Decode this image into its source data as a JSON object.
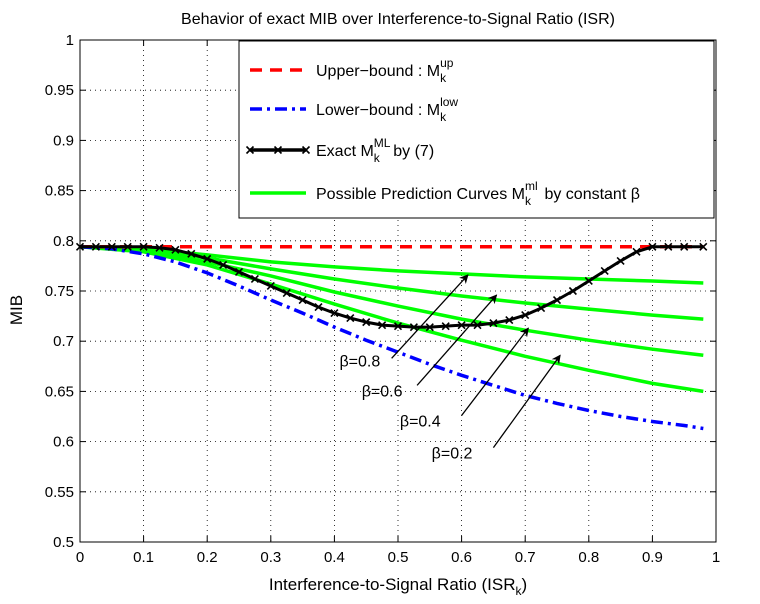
{
  "chart_data": {
    "type": "line",
    "title": "Behavior of exact MIB over Interference-to-Signal Ratio (ISR)",
    "xlabel": {
      "main": "Interference-to-Signal Ratio (ISR",
      "sub": "k",
      "close": ")"
    },
    "ylabel": "MIB",
    "xlim": [
      0,
      1
    ],
    "ylim": [
      0.5,
      1
    ],
    "xticks": [
      "0",
      "0.1",
      "0.2",
      "0.3",
      "0.4",
      "0.5",
      "0.6",
      "0.7",
      "0.8",
      "0.9",
      "1"
    ],
    "yticks": [
      "0.5",
      "0.55",
      "0.6",
      "0.65",
      "0.7",
      "0.75",
      "0.8",
      "0.85",
      "0.9",
      "0.95",
      "1"
    ],
    "grid": true,
    "legend_position": "top-right",
    "colors": {
      "upper": "#ff0000",
      "lower": "#0000ff",
      "exact": "#000000",
      "prediction": "#00ff00"
    },
    "legend": [
      {
        "key": "upper",
        "text": "Upper−bound : M",
        "sub": "k",
        "sup": "up",
        "suffix": ""
      },
      {
        "key": "lower",
        "text": "Lower−bound : M",
        "sub": "k",
        "sup": "low",
        "suffix": ""
      },
      {
        "key": "exact",
        "text": "Exact M",
        "sub": "k",
        "sup": "ML",
        "suffix": " by (7)"
      },
      {
        "key": "prediction",
        "text": "Possible Prediction Curves M",
        "sub": "k",
        "sup": "ml",
        "suffix": " by constant β"
      }
    ],
    "series": {
      "upper": {
        "x": [
          0,
          0.98
        ],
        "y": [
          0.794,
          0.794
        ]
      },
      "lower": {
        "x": [
          0,
          0.05,
          0.1,
          0.15,
          0.2,
          0.25,
          0.3,
          0.35,
          0.4,
          0.45,
          0.5,
          0.55,
          0.6,
          0.65,
          0.7,
          0.75,
          0.8,
          0.85,
          0.9,
          0.95,
          0.98
        ],
        "y": [
          0.794,
          0.792,
          0.787,
          0.779,
          0.768,
          0.755,
          0.741,
          0.728,
          0.714,
          0.701,
          0.689,
          0.677,
          0.666,
          0.656,
          0.646,
          0.638,
          0.631,
          0.625,
          0.62,
          0.616,
          0.613
        ]
      },
      "exact": {
        "x": [
          0,
          0.025,
          0.05,
          0.075,
          0.1,
          0.125,
          0.15,
          0.175,
          0.2,
          0.225,
          0.25,
          0.275,
          0.3,
          0.325,
          0.35,
          0.375,
          0.4,
          0.425,
          0.45,
          0.475,
          0.5,
          0.525,
          0.55,
          0.575,
          0.6,
          0.625,
          0.65,
          0.675,
          0.7,
          0.725,
          0.75,
          0.775,
          0.8,
          0.825,
          0.85,
          0.875,
          0.9,
          0.925,
          0.95,
          0.98
        ],
        "y": [
          0.794,
          0.794,
          0.794,
          0.794,
          0.794,
          0.793,
          0.791,
          0.787,
          0.782,
          0.776,
          0.769,
          0.762,
          0.755,
          0.748,
          0.741,
          0.734,
          0.728,
          0.723,
          0.719,
          0.716,
          0.715,
          0.714,
          0.714,
          0.715,
          0.716,
          0.716,
          0.718,
          0.721,
          0.726,
          0.733,
          0.741,
          0.75,
          0.76,
          0.77,
          0.78,
          0.789,
          0.794,
          0.794,
          0.794,
          0.794
        ]
      },
      "prediction": [
        {
          "label": "β=0.8",
          "x": [
            0,
            0.1,
            0.2,
            0.3,
            0.4,
            0.5,
            0.6,
            0.7,
            0.8,
            0.9,
            0.98
          ],
          "y": [
            0.794,
            0.792,
            0.786,
            0.779,
            0.774,
            0.77,
            0.767,
            0.764,
            0.762,
            0.76,
            0.758
          ]
        },
        {
          "label": "β=0.6",
          "x": [
            0,
            0.1,
            0.2,
            0.3,
            0.4,
            0.5,
            0.6,
            0.7,
            0.8,
            0.9,
            0.98
          ],
          "y": [
            0.794,
            0.791,
            0.783,
            0.772,
            0.762,
            0.753,
            0.745,
            0.738,
            0.732,
            0.726,
            0.722
          ]
        },
        {
          "label": "β=0.4",
          "x": [
            0,
            0.1,
            0.2,
            0.3,
            0.4,
            0.5,
            0.6,
            0.7,
            0.8,
            0.9,
            0.98
          ],
          "y": [
            0.794,
            0.79,
            0.779,
            0.765,
            0.749,
            0.735,
            0.722,
            0.711,
            0.701,
            0.692,
            0.686
          ]
        },
        {
          "label": "β=0.2",
          "x": [
            0,
            0.1,
            0.2,
            0.3,
            0.4,
            0.5,
            0.6,
            0.7,
            0.8,
            0.9,
            0.98
          ],
          "y": [
            0.794,
            0.789,
            0.776,
            0.757,
            0.737,
            0.718,
            0.701,
            0.685,
            0.671,
            0.658,
            0.65
          ]
        }
      ]
    },
    "annotations": [
      {
        "text": "β=0.8",
        "text_at": [
          0.44,
          0.675
        ],
        "arrow_from": [
          0.49,
          0.683
        ],
        "arrow_to": [
          0.61,
          0.766
        ]
      },
      {
        "text": "β=0.6",
        "text_at": [
          0.475,
          0.645
        ],
        "arrow_from": [
          0.53,
          0.656
        ],
        "arrow_to": [
          0.655,
          0.746
        ]
      },
      {
        "text": "β=0.4",
        "text_at": [
          0.535,
          0.615
        ],
        "arrow_from": [
          0.6,
          0.626
        ],
        "arrow_to": [
          0.705,
          0.713
        ]
      },
      {
        "text": "β=0.2",
        "text_at": [
          0.585,
          0.583
        ],
        "arrow_from": [
          0.65,
          0.594
        ],
        "arrow_to": [
          0.755,
          0.686
        ]
      }
    ]
  }
}
